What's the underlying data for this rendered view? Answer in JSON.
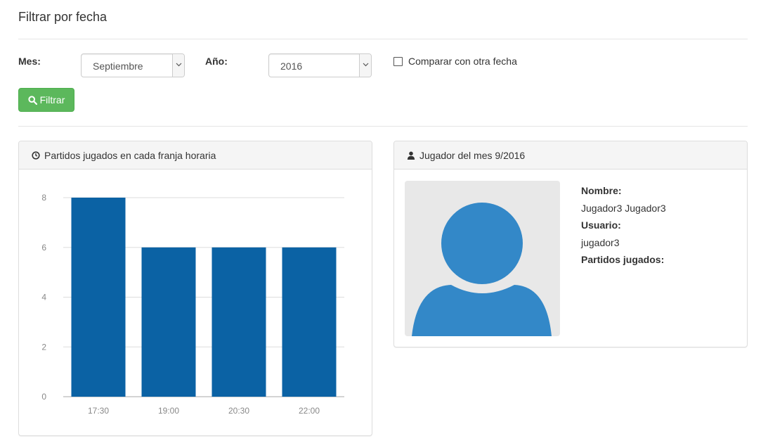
{
  "page": {
    "title": "Filtrar por fecha"
  },
  "filters": {
    "month_label": "Mes:",
    "month_value": "Septiembre",
    "year_label": "Año:",
    "year_value": "2016",
    "compare_label": "Comparar con otra fecha",
    "compare_checked": false,
    "filter_button": "Filtrar"
  },
  "chart_panel": {
    "title": "Partidos jugados en cada franja horaria",
    "icon": "clock-icon"
  },
  "chart_data": {
    "type": "bar",
    "categories": [
      "17:30",
      "19:00",
      "20:30",
      "22:00"
    ],
    "values": [
      8,
      6,
      6,
      6
    ],
    "title": "",
    "xlabel": "",
    "ylabel": "",
    "ylim": [
      0,
      8
    ],
    "yticks": [
      0,
      2,
      4,
      6,
      8
    ],
    "grid": true,
    "bar_color": "#0b62a4"
  },
  "player_panel": {
    "title": "Jugador del mes 9/2016",
    "icon": "user-icon",
    "name_label": "Nombre:",
    "name_value": "Jugador3 Jugador3",
    "user_label": "Usuario:",
    "user_value": "jugador3",
    "matches_label": "Partidos jugados:",
    "avatar_color": "#3388c8"
  },
  "colors": {
    "success": "#5cb85c",
    "bar": "#0b62a4"
  }
}
